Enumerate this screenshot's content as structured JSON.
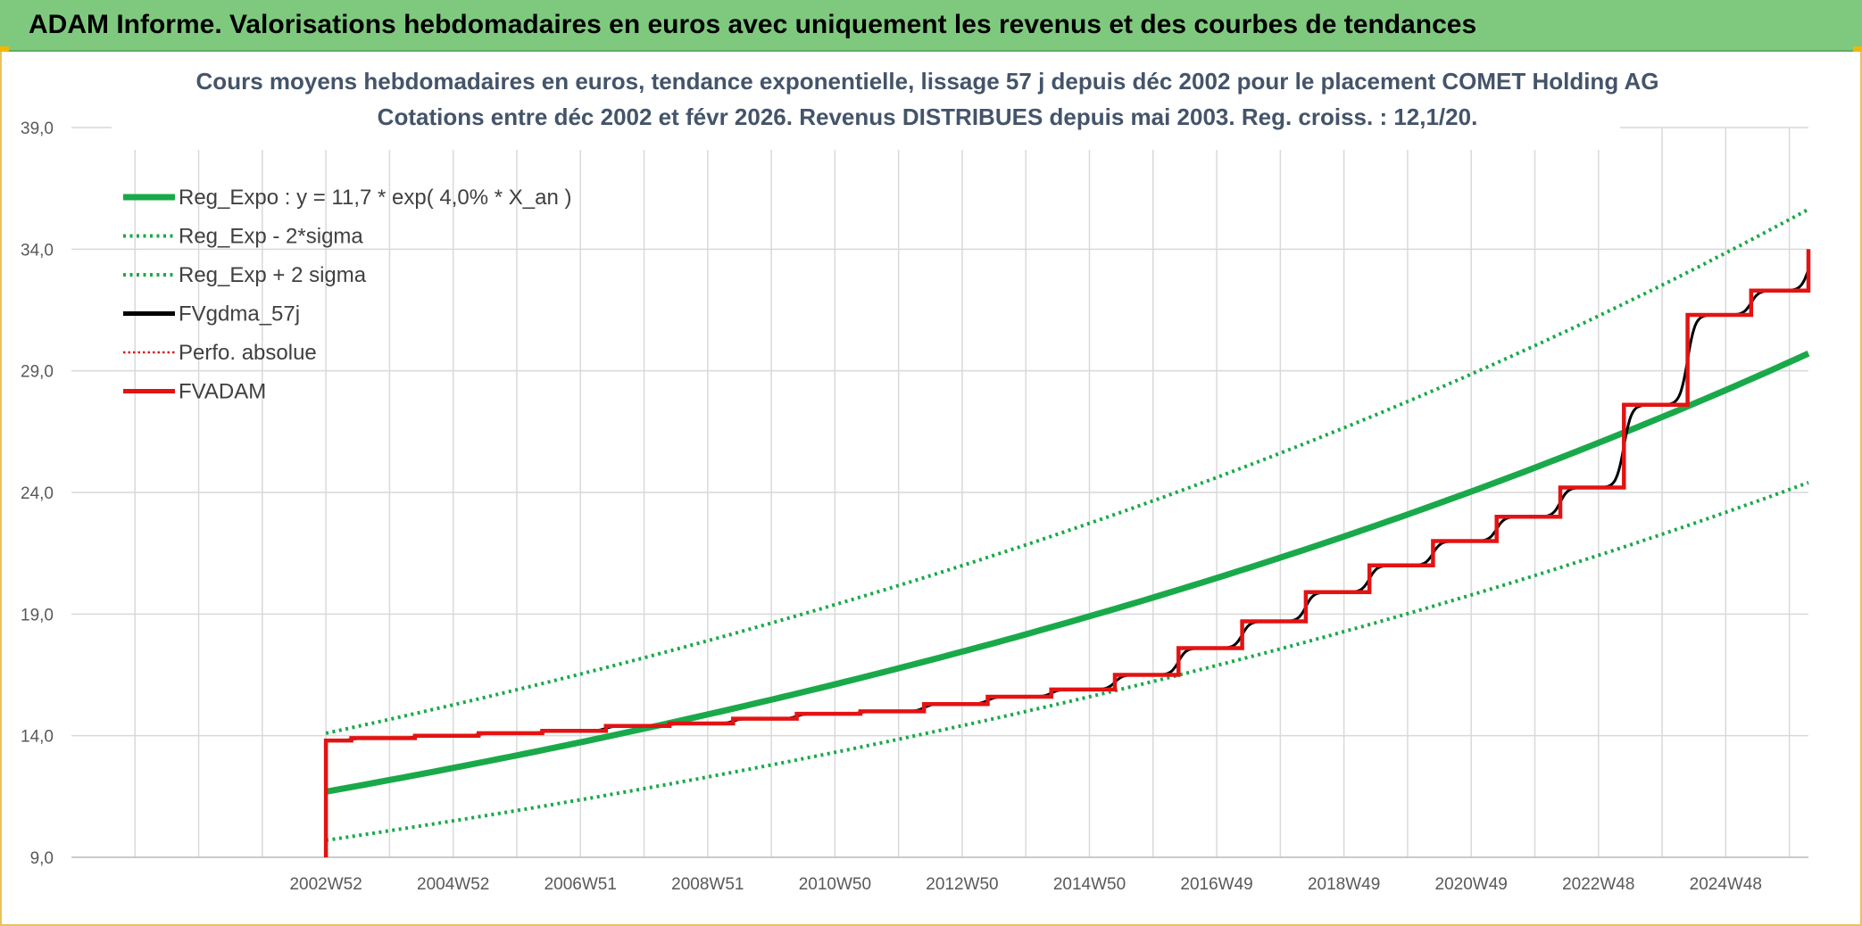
{
  "header": {
    "title": "ADAM Informe. Valorisations hebdomadaires en euros avec uniquement les revenus et des courbes de tendances"
  },
  "colors": {
    "header_bg": "#7fc97f",
    "green": "#1aa94a",
    "red": "#e31313",
    "black": "#000000",
    "grid": "#d9d9d9",
    "title": "#44546a"
  },
  "chart_data": {
    "type": "line",
    "title": "Cours moyens hebdomadaires en euros, tendance exponentielle, lissage 57 j depuis déc 2002 pour le placement COMET Holding AG",
    "subtitle": "Cotations entre déc 2002 et févr 2026. Revenus DISTRIBUES depuis mai 2003. Reg. croiss. : 12,1/20.",
    "xlabel": "",
    "ylabel": "",
    "ylim": [
      9.0,
      39.0
    ],
    "yticks": [
      "9,0",
      "14,0",
      "19,0",
      "24,0",
      "29,0",
      "34,0",
      "39,0"
    ],
    "xlim": [
      1999.0,
      2026.3
    ],
    "x_tick_labels": [
      "2002W52",
      "2004W52",
      "2006W51",
      "2008W51",
      "2010W50",
      "2012W50",
      "2014W50",
      "2016W49",
      "2018W49",
      "2020W49",
      "2022W48",
      "2024W48"
    ],
    "x_tick_years": [
      2003,
      2005,
      2007,
      2009,
      2011,
      2013,
      2015,
      2017,
      2019,
      2021,
      2023,
      2025
    ],
    "legend": [
      {
        "label": "Reg_Expo : y = 11,7 * exp( 4,0% *  X_an )",
        "style": "solid-thick",
        "color": "#1aa94a"
      },
      {
        "label": "Reg_Exp - 2*sigma",
        "style": "dotted",
        "color": "#1aa94a"
      },
      {
        "label": "Reg_Exp + 2 sigma",
        "style": "dotted",
        "color": "#1aa94a"
      },
      {
        "label": "FVgdma_57j",
        "style": "solid",
        "color": "#000000"
      },
      {
        "label": "Perfo. absolue",
        "style": "dotted-thin",
        "color": "#e31313"
      },
      {
        "label": "FVADAM",
        "style": "solid",
        "color": "#e31313"
      }
    ],
    "series": [
      {
        "name": "Reg_Expo",
        "x": [
          2003.0,
          2026.3
        ],
        "a": 11.7,
        "rate": 0.04
      },
      {
        "name": "Reg_Exp - 2*sigma",
        "x": [
          2003.0,
          2026.3
        ],
        "a": 9.7,
        "rate": 0.0396
      },
      {
        "name": "Reg_Exp + 2 sigma",
        "x": [
          2003.0,
          2026.3
        ],
        "a": 14.1,
        "rate": 0.0398
      },
      {
        "name": "FVADAM",
        "x": [
          2003.0,
          2003.0,
          2003.4,
          2004.4,
          2005.4,
          2006.4,
          2007.4,
          2008.4,
          2009.4,
          2010.4,
          2011.4,
          2012.4,
          2013.4,
          2014.4,
          2015.4,
          2016.4,
          2017.4,
          2018.4,
          2019.4,
          2020.4,
          2021.4,
          2022.4,
          2023.4,
          2024.4,
          2025.4,
          2026.3
        ],
        "y": [
          9.0,
          13.8,
          13.9,
          14.0,
          14.1,
          14.2,
          14.4,
          14.5,
          14.7,
          14.9,
          15.0,
          15.3,
          15.6,
          15.9,
          16.5,
          17.6,
          18.7,
          19.9,
          21.0,
          22.0,
          23.0,
          24.2,
          27.6,
          31.3,
          32.3,
          34.0
        ]
      }
    ]
  }
}
